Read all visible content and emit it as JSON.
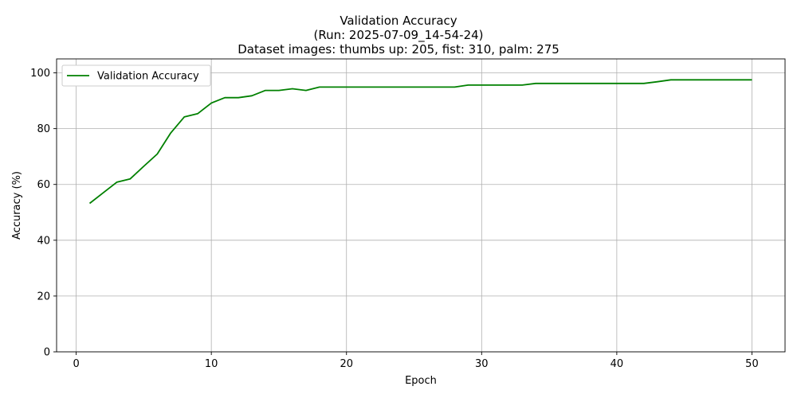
{
  "chart_data": {
    "type": "line",
    "title_lines": [
      "Validation Accuracy",
      "(Run: 2025-07-09_14-54-24)",
      "Dataset images: thumbs up: 205, fist: 310, palm: 275"
    ],
    "xlabel": "Epoch",
    "ylabel": "Accuracy (%)",
    "xlim": [
      -1.45,
      52.45
    ],
    "ylim": [
      0,
      105
    ],
    "xticks": [
      0,
      10,
      20,
      30,
      40,
      50
    ],
    "yticks": [
      0,
      20,
      40,
      60,
      80,
      100
    ],
    "grid": true,
    "legend_position": "upper-left",
    "series": [
      {
        "name": "Validation Accuracy",
        "color": "#008000",
        "x": [
          1,
          2,
          3,
          4,
          5,
          6,
          7,
          8,
          9,
          10,
          11,
          12,
          13,
          14,
          15,
          16,
          17,
          18,
          19,
          20,
          21,
          22,
          23,
          24,
          25,
          26,
          27,
          28,
          29,
          30,
          31,
          32,
          33,
          34,
          35,
          36,
          37,
          38,
          39,
          40,
          41,
          42,
          43,
          44,
          45,
          46,
          47,
          48,
          49,
          50
        ],
        "y": [
          53.2,
          57.0,
          60.8,
          62.0,
          66.5,
          70.9,
          78.5,
          84.2,
          85.4,
          89.2,
          91.1,
          91.1,
          91.8,
          93.7,
          93.7,
          94.3,
          93.7,
          94.9,
          94.9,
          94.9,
          94.9,
          94.9,
          94.9,
          94.9,
          94.9,
          94.9,
          94.9,
          94.9,
          95.6,
          95.6,
          95.6,
          95.6,
          95.6,
          96.2,
          96.2,
          96.2,
          96.2,
          96.2,
          96.2,
          96.2,
          96.2,
          96.2,
          96.8,
          97.5,
          97.5,
          97.5,
          97.5,
          97.5,
          97.5,
          97.5
        ]
      }
    ]
  }
}
